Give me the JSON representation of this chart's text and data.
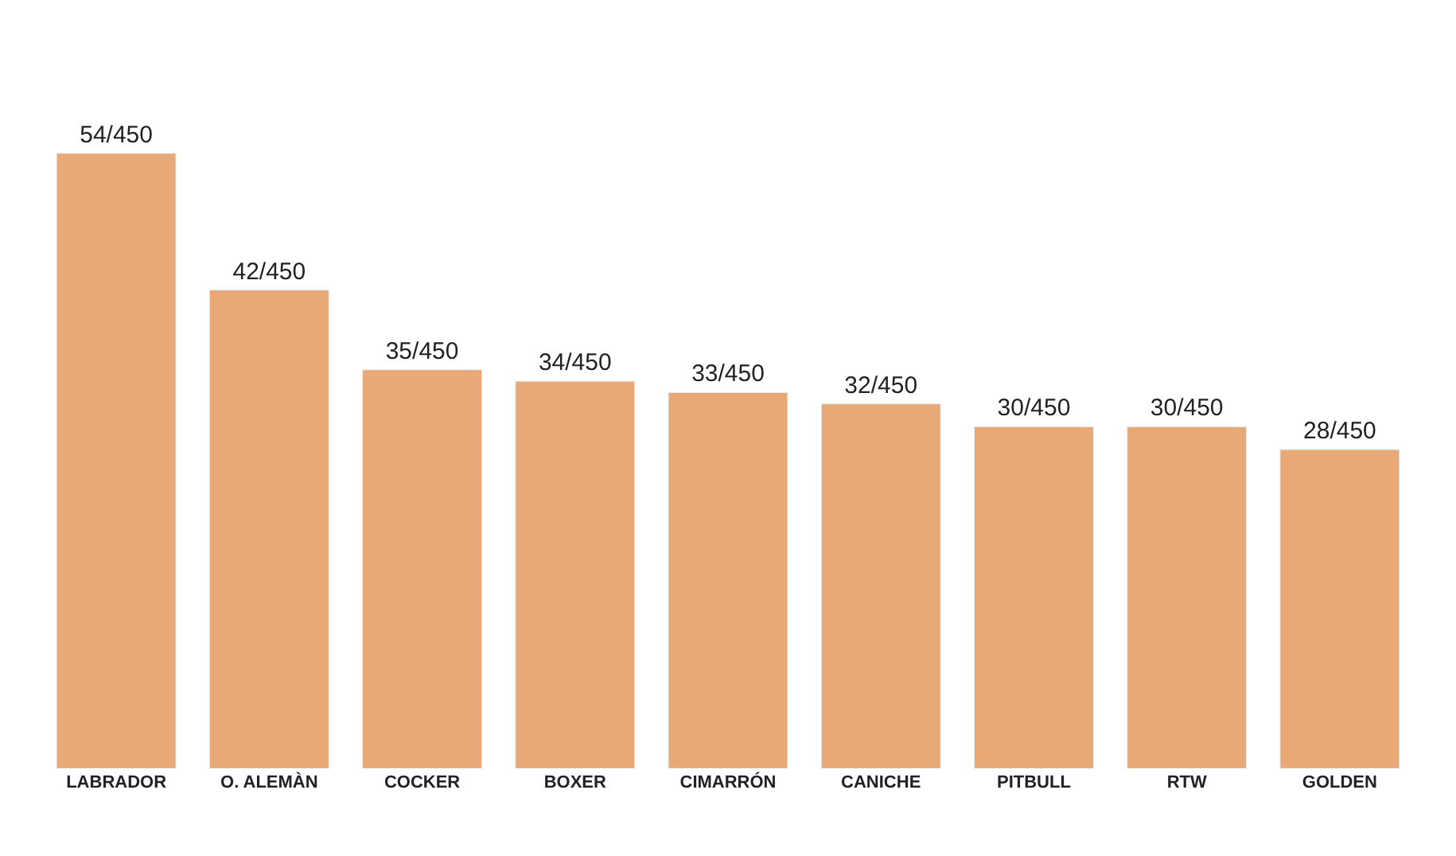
{
  "chart_data": {
    "type": "bar",
    "categories": [
      "LABRADOR",
      "O. ALEMÀN",
      "COCKER",
      "BOXER",
      "CIMARRÓN",
      "CANICHE",
      "PITBULL",
      "RTW",
      "GOLDEN"
    ],
    "values": [
      54,
      42,
      35,
      34,
      33,
      32,
      30,
      30,
      28
    ],
    "value_labels": [
      "54/450",
      "42/450",
      "35/450",
      "34/450",
      "33/450",
      "32/450",
      "30/450",
      "30/450",
      "28/450"
    ],
    "color": "#e8a976"
  }
}
